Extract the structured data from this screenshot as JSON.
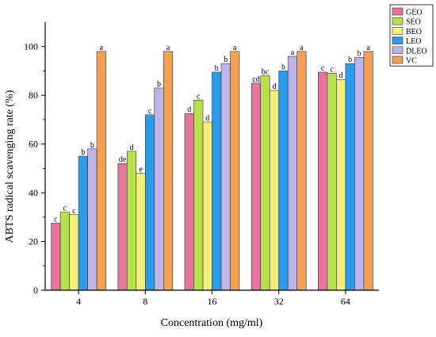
{
  "chart_data": {
    "type": "bar",
    "title": "",
    "xlabel": "Concentration (mg/ml)",
    "ylabel": "ABTS radical scavenging rate (%)",
    "ylim": [
      0,
      110
    ],
    "yticks": [
      0,
      20,
      40,
      60,
      80,
      100
    ],
    "categories": [
      "4",
      "8",
      "16",
      "32",
      "64"
    ],
    "legend_position": "top-right",
    "grid": false,
    "series": [
      {
        "name": "GEO",
        "color": "#e8749e",
        "values": [
          27.5,
          52.0,
          72.5,
          85.0,
          89.5
        ],
        "labels": [
          "c",
          "de",
          "d",
          "cd",
          "c"
        ]
      },
      {
        "name": "SEO",
        "color": "#b8e04a",
        "values": [
          32.0,
          57.0,
          78.0,
          88.0,
          89.0
        ],
        "labels": [
          "c",
          "d",
          "c",
          "bc",
          "c"
        ]
      },
      {
        "name": "BEO",
        "color": "#f2ef7e",
        "values": [
          31.0,
          48.0,
          69.0,
          82.0,
          86.5
        ],
        "labels": [
          "c",
          "e",
          "d",
          "d",
          "d"
        ]
      },
      {
        "name": "LEO",
        "color": "#2e9bea",
        "values": [
          55.0,
          72.0,
          89.5,
          90.0,
          93.0
        ],
        "labels": [
          "b",
          "c",
          "b",
          "b",
          "b"
        ]
      },
      {
        "name": "DLEO",
        "color": "#bfb3ec",
        "values": [
          58.0,
          83.0,
          93.0,
          96.0,
          95.5
        ],
        "labels": [
          "b",
          "b",
          "b",
          "a",
          "b"
        ]
      },
      {
        "name": "VC",
        "color": "#f3a052",
        "values": [
          98.0,
          98.0,
          98.0,
          98.0,
          98.0
        ],
        "labels": [
          "a",
          "a",
          "a",
          "a",
          "a"
        ]
      }
    ]
  }
}
